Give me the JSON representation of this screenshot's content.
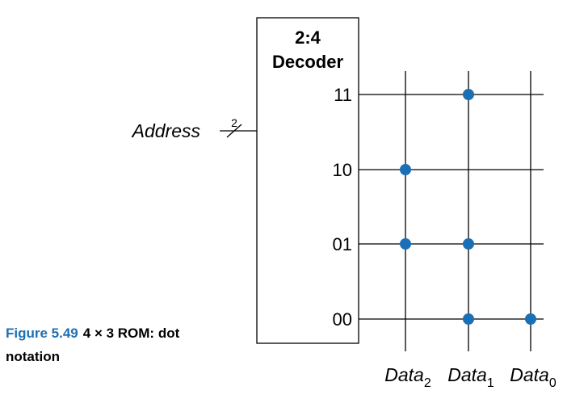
{
  "decoder": {
    "title_line1": "2:4",
    "title_line2": "Decoder"
  },
  "address": {
    "label": "Address",
    "bus_width": "2"
  },
  "rows": [
    {
      "label": "11",
      "dots": [
        false,
        true,
        false
      ]
    },
    {
      "label": "10",
      "dots": [
        true,
        false,
        false
      ]
    },
    {
      "label": "01",
      "dots": [
        true,
        true,
        false
      ]
    },
    {
      "label": "00",
      "dots": [
        false,
        true,
        true
      ]
    }
  ],
  "columns": [
    {
      "base": "Data",
      "sub": "2"
    },
    {
      "base": "Data",
      "sub": "1"
    },
    {
      "base": "Data",
      "sub": "0"
    }
  ],
  "caption": {
    "figure_number": "Figure 5.49",
    "text": "4 × 3 ROM: dot notation"
  },
  "colors": {
    "dot": "#1b6fb5",
    "line": "#000000",
    "figure_number": "#1b6fb5"
  }
}
